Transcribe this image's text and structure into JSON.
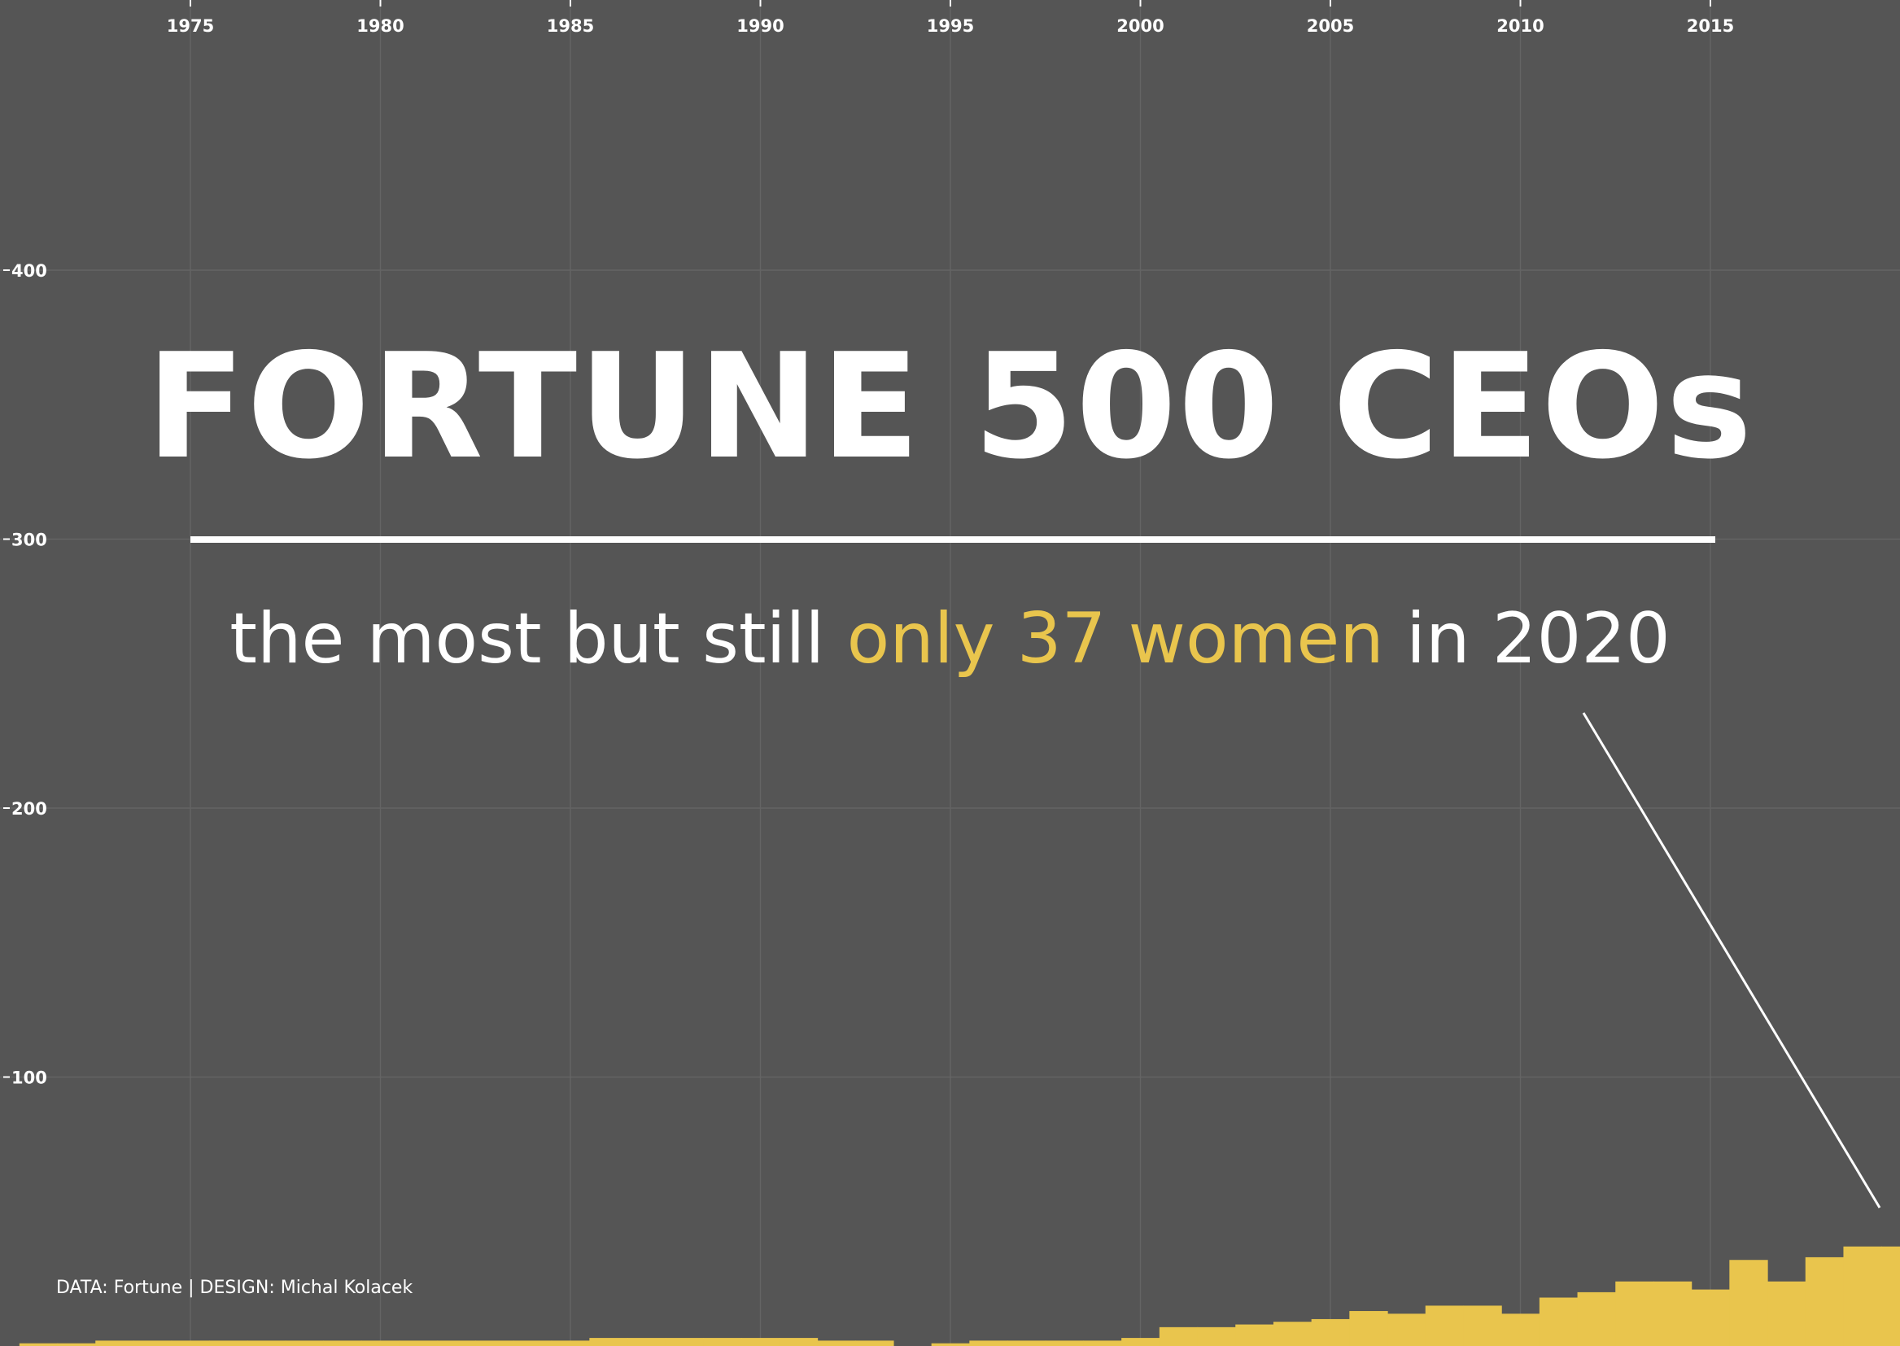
{
  "colors": {
    "background": "#555555",
    "bars": "#e9c54d",
    "highlight": "#e9c54d",
    "text": "#ffffff",
    "grid": "#646464"
  },
  "title": "FORTUNE 500 CEOs",
  "subtitle": {
    "part1": "the most but still ",
    "highlight": "only 37 women",
    "part2": " in 2020"
  },
  "credit": "DATA: Fortune | DESIGN: Michal Kolacek",
  "chart_data": {
    "type": "bar",
    "title": "",
    "xlabel": "",
    "ylabel": "",
    "x_ticks": [
      1975,
      1980,
      1985,
      1990,
      1995,
      2000,
      2005,
      2010,
      2015
    ],
    "y_ticks": [
      100,
      200,
      300,
      400
    ],
    "xlim": [
      1970.5,
      2020.5
    ],
    "ylim": [
      0,
      500
    ],
    "grid": true,
    "categories": [
      1971,
      1972,
      1973,
      1974,
      1975,
      1976,
      1977,
      1978,
      1979,
      1980,
      1981,
      1982,
      1983,
      1984,
      1985,
      1986,
      1987,
      1988,
      1989,
      1990,
      1991,
      1992,
      1993,
      1994,
      1995,
      1996,
      1997,
      1998,
      1999,
      2000,
      2001,
      2002,
      2003,
      2004,
      2005,
      2006,
      2007,
      2008,
      2009,
      2010,
      2011,
      2012,
      2013,
      2014,
      2015,
      2016,
      2017,
      2018,
      2019,
      2020
    ],
    "values": [
      1,
      1,
      2,
      2,
      2,
      2,
      2,
      2,
      2,
      2,
      2,
      2,
      2,
      2,
      2,
      3,
      3,
      3,
      3,
      3,
      3,
      2,
      2,
      0,
      1,
      2,
      2,
      2,
      2,
      3,
      7,
      7,
      8,
      9,
      10,
      13,
      12,
      15,
      15,
      12,
      18,
      20,
      24,
      24,
      21,
      32,
      24,
      33,
      37,
      37
    ]
  }
}
